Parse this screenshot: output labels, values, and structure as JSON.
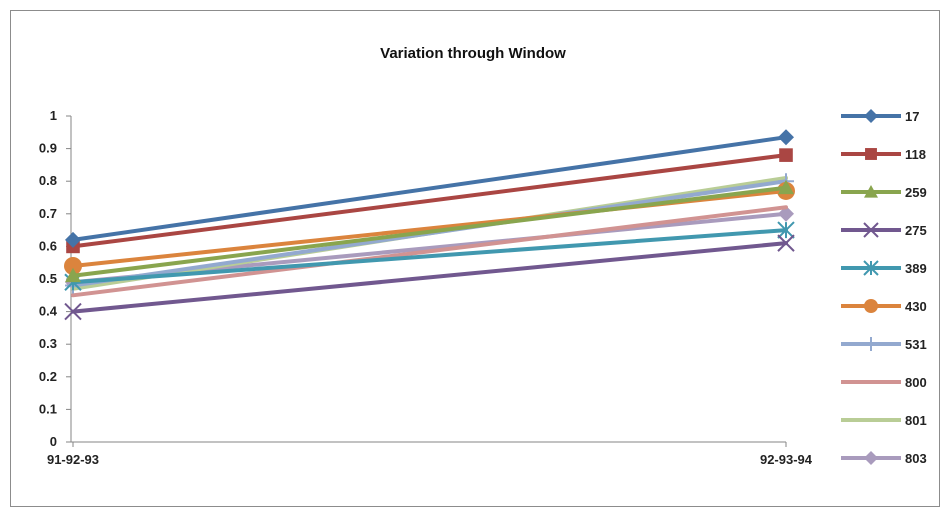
{
  "chart_data": {
    "type": "line",
    "title": "Variation through Window",
    "xlabel": "",
    "ylabel": "",
    "categories": [
      "91-92-93",
      "92-93-94"
    ],
    "ylim": [
      0,
      1
    ],
    "yticks": [
      0,
      0.1,
      0.2,
      0.3,
      0.4,
      0.5,
      0.6,
      0.7,
      0.8,
      0.9,
      1
    ],
    "ytick_labels": [
      "0",
      "0.1",
      "0.2",
      "0.3",
      "0.4",
      "0.5",
      "0.6",
      "0.7",
      "0.8",
      "0.9",
      "1"
    ],
    "grid": false,
    "legend_position": "right",
    "series": [
      {
        "name": "17",
        "values": [
          0.62,
          0.935
        ],
        "color": "#4573a7",
        "marker": "diamond"
      },
      {
        "name": "118",
        "values": [
          0.6,
          0.88
        ],
        "color": "#aa4643",
        "marker": "square"
      },
      {
        "name": "259",
        "values": [
          0.51,
          0.78
        ],
        "color": "#89a54e",
        "marker": "triangle"
      },
      {
        "name": "275",
        "values": [
          0.4,
          0.61
        ],
        "color": "#71588f",
        "marker": "x"
      },
      {
        "name": "389",
        "values": [
          0.49,
          0.65
        ],
        "color": "#4198af",
        "marker": "star"
      },
      {
        "name": "430",
        "values": [
          0.54,
          0.77
        ],
        "color": "#db843d",
        "marker": "circle"
      },
      {
        "name": "531",
        "values": [
          0.48,
          0.8
        ],
        "color": "#93a9cf",
        "marker": "plus"
      },
      {
        "name": "800",
        "values": [
          0.45,
          0.72
        ],
        "color": "#d19392",
        "marker": "none"
      },
      {
        "name": "801",
        "values": [
          0.47,
          0.81
        ],
        "color": "#b9cd96",
        "marker": "none"
      },
      {
        "name": "803",
        "values": [
          0.49,
          0.7
        ],
        "color": "#a99bbd",
        "marker": "diamond"
      }
    ]
  }
}
